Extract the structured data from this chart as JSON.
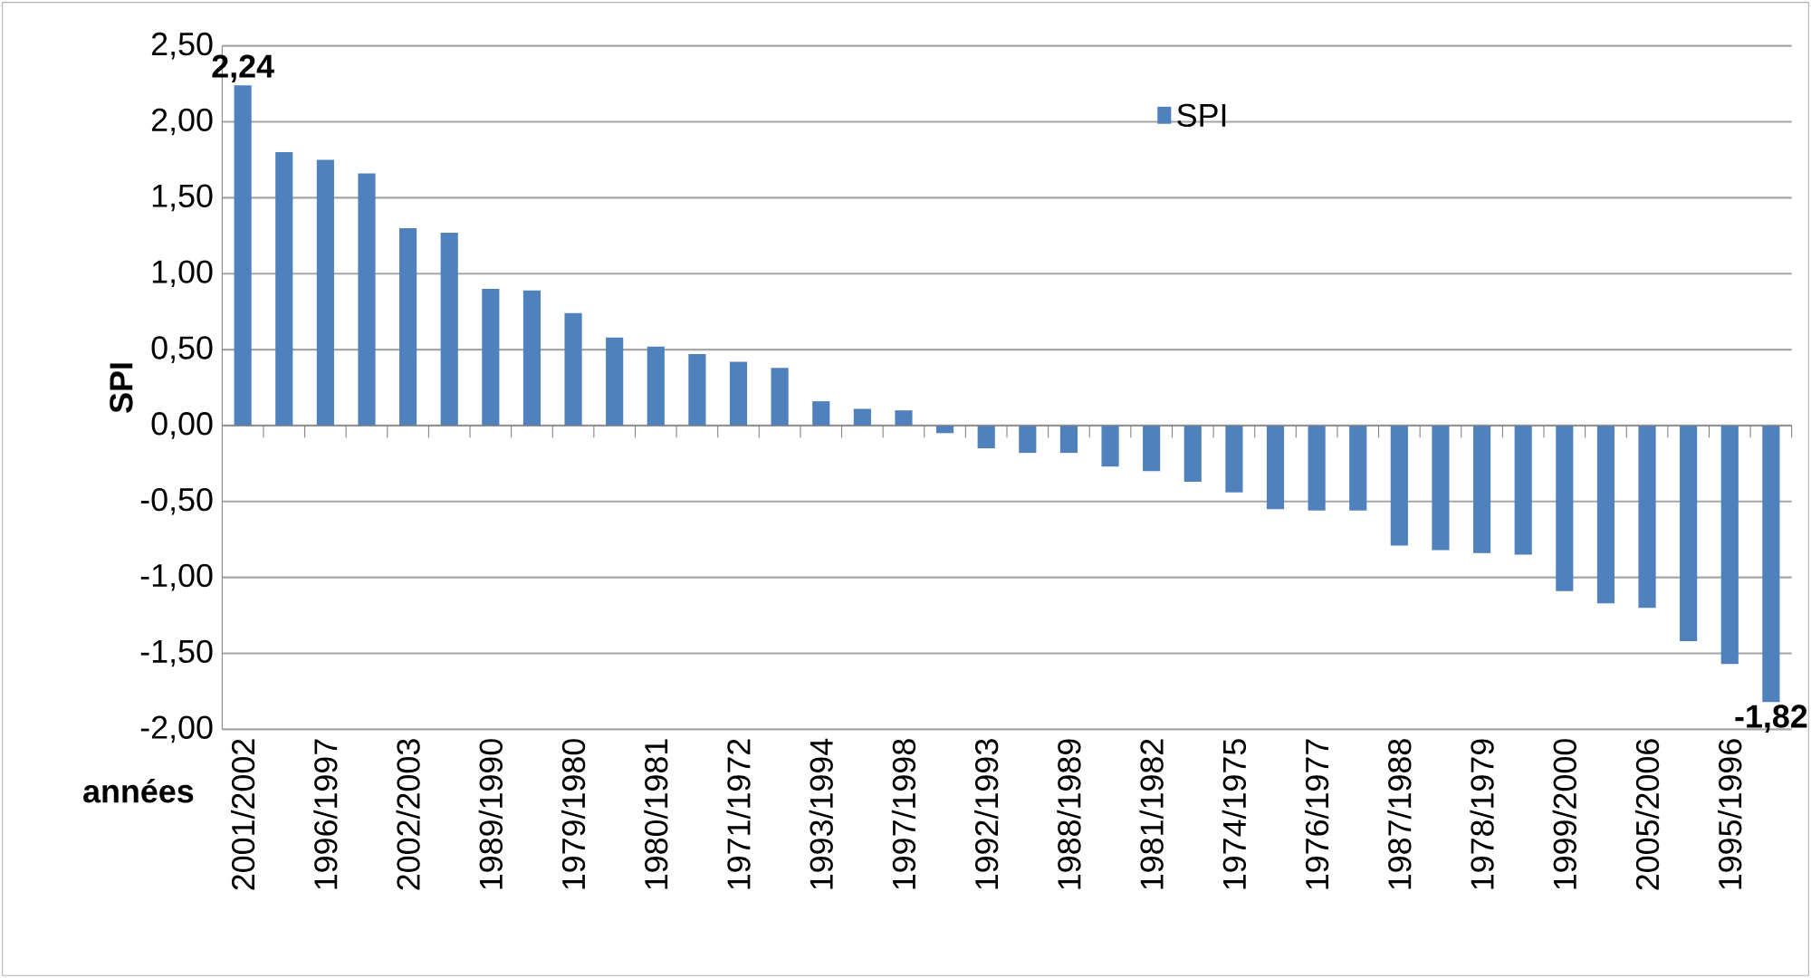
{
  "chart_data": {
    "type": "bar",
    "xlabel": "années",
    "ylabel": "SPI",
    "categories": [
      "2001/2002",
      null,
      "1996/1997",
      null,
      "2002/2003",
      null,
      "1989/1990",
      null,
      "1979/1980",
      null,
      "1980/1981",
      null,
      "1971/1972",
      null,
      "1993/1994",
      null,
      "1997/1998",
      null,
      "1992/1993",
      null,
      "1988/1989",
      null,
      "1981/1982",
      null,
      "1974/1975",
      null,
      "1976/1977",
      null,
      "1987/1988",
      null,
      "1978/1979",
      null,
      "1999/2000",
      null,
      "2005/2006",
      null,
      "1995/1996",
      null
    ],
    "series": [
      {
        "name": "SPI",
        "color": "#4f81bd",
        "values": [
          2.24,
          1.8,
          1.75,
          1.66,
          1.3,
          1.27,
          0.9,
          0.89,
          0.74,
          0.58,
          0.52,
          0.47,
          0.42,
          0.38,
          0.16,
          0.11,
          0.1,
          -0.05,
          -0.15,
          -0.18,
          -0.18,
          -0.27,
          -0.3,
          -0.37,
          -0.44,
          -0.55,
          -0.56,
          -0.56,
          -0.79,
          -0.82,
          -0.84,
          -0.85,
          -1.09,
          -1.17,
          -1.2,
          -1.42,
          -1.57,
          -1.82
        ],
        "value_labels": [
          "2,24",
          null,
          null,
          null,
          null,
          null,
          null,
          null,
          null,
          null,
          null,
          null,
          null,
          null,
          null,
          null,
          null,
          null,
          null,
          null,
          null,
          null,
          null,
          null,
          null,
          null,
          null,
          null,
          null,
          null,
          null,
          null,
          null,
          null,
          null,
          null,
          null,
          "-1,82"
        ]
      }
    ],
    "ylim": [
      -2.0,
      2.5
    ],
    "yticks": [
      {
        "value": -2.0,
        "label": "-2,00"
      },
      {
        "value": -1.5,
        "label": "-1,50"
      },
      {
        "value": -1.0,
        "label": "-1,00"
      },
      {
        "value": -0.5,
        "label": "-0,50"
      },
      {
        "value": 0.0,
        "label": "0,00"
      },
      {
        "value": 0.5,
        "label": "0,50"
      },
      {
        "value": 1.0,
        "label": "1,00"
      },
      {
        "value": 1.5,
        "label": "1,50"
      },
      {
        "value": 2.0,
        "label": "2,00"
      },
      {
        "value": 2.5,
        "label": "2,50"
      }
    ],
    "grid": "y",
    "legend": "top"
  }
}
